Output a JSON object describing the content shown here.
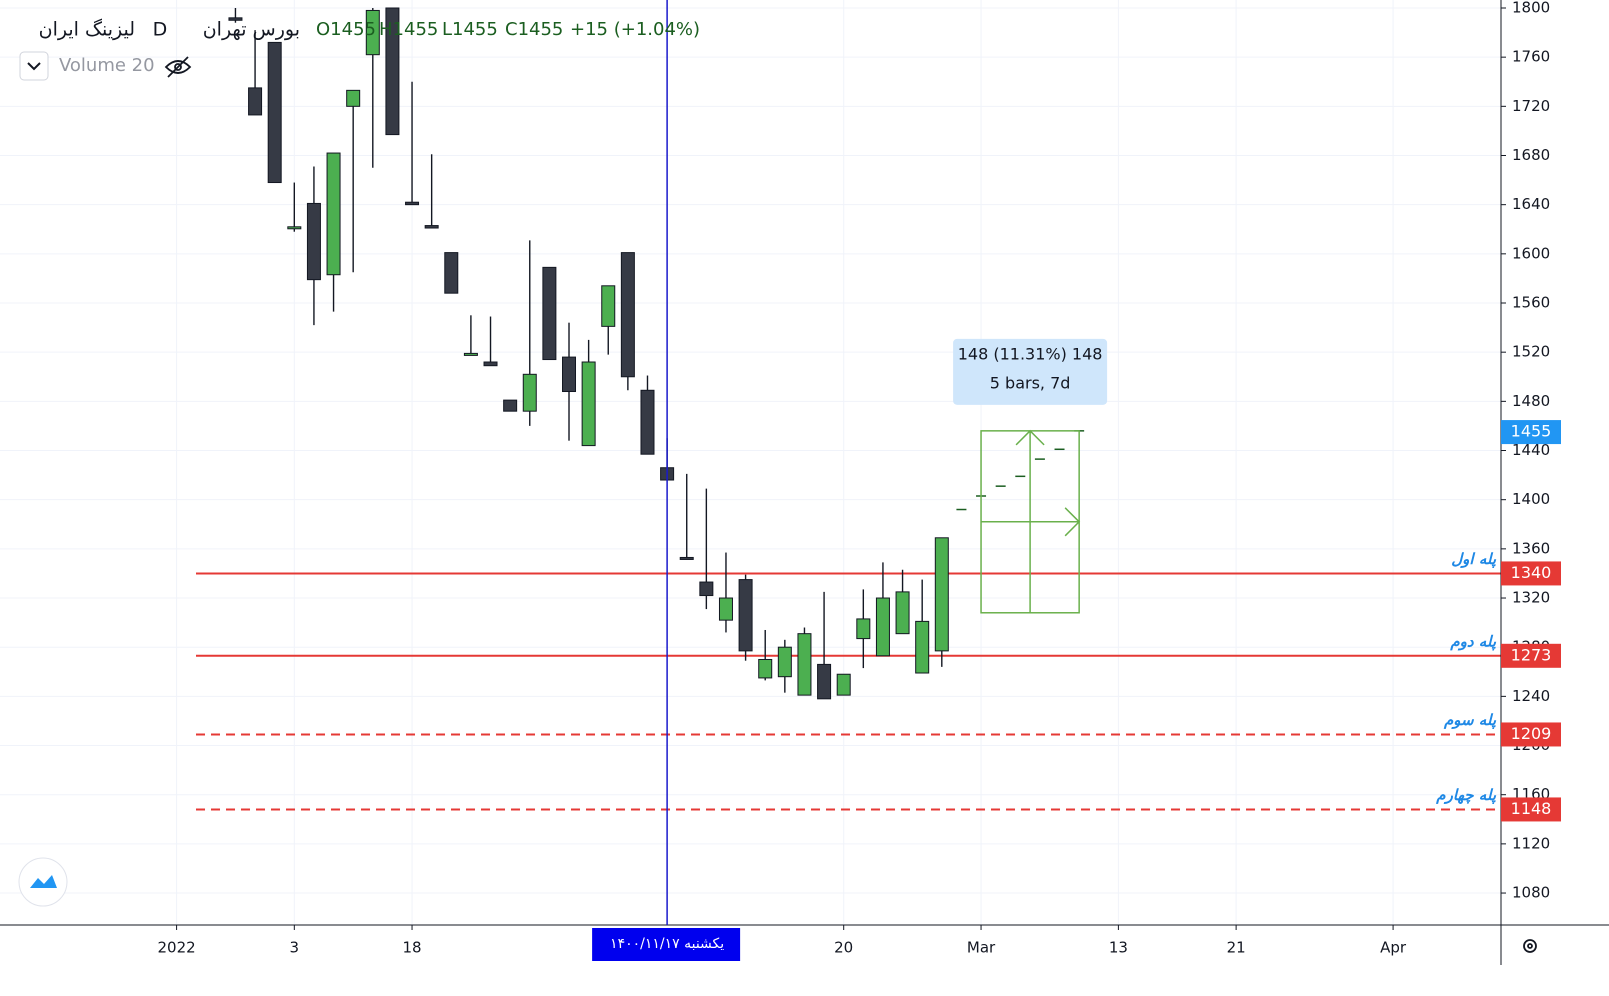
{
  "chart_data": {
    "type": "candlestick",
    "header": {
      "symbol": "لیزینگ ایران",
      "interval": "D",
      "exchange": "بورس تهران",
      "ohlc": [
        "O1455",
        "H1455",
        "L1455",
        "C1455"
      ],
      "change": "+15 (+1.04%)",
      "indicator": "Volume 20"
    },
    "x": [
      0,
      1,
      2,
      3,
      4,
      5,
      6,
      7,
      8,
      9,
      10,
      11,
      12,
      13,
      14,
      15,
      16,
      17,
      18,
      19,
      20,
      21,
      22,
      23,
      24,
      25,
      26,
      27,
      28,
      29,
      30,
      31,
      32,
      33,
      34,
      35,
      36
    ],
    "open": [
      1792,
      1735,
      1772,
      1622,
      1641,
      1583,
      1720,
      1762,
      1800,
      1642,
      1623,
      1601,
      1519,
      1512,
      1481,
      1472,
      1589,
      1516,
      1444,
      1541,
      1601,
      1489,
      1426,
      1353,
      1333,
      1302,
      1335,
      1255,
      1256,
      1241,
      1266,
      1241,
      1287,
      1273,
      1291,
      1259,
      1277
    ],
    "high": [
      1800,
      1782,
      1772,
      1658,
      1671,
      1682,
      1733,
      1800,
      1800,
      1740,
      1681,
      1601,
      1550,
      1549,
      1481,
      1611,
      1589,
      1544,
      1530,
      1574,
      1601,
      1501,
      1450,
      1421,
      1409,
      1357,
      1339,
      1294,
      1286,
      1296,
      1325,
      1258,
      1327,
      1349,
      1343,
      1335,
      1369
    ],
    "low": [
      1788,
      1713,
      1658,
      1618,
      1542,
      1553,
      1585,
      1670,
      1697,
      1640,
      1621,
      1568,
      1519,
      1509,
      1472,
      1460,
      1514,
      1448,
      1444,
      1518,
      1489,
      1437,
      1416,
      1352,
      1311,
      1292,
      1269,
      1253,
      1243,
      1241,
      1238,
      1241,
      1263,
      1273,
      1291,
      1259,
      1264
    ],
    "close": [
      1790,
      1713,
      1658,
      1622,
      1579,
      1682,
      1733,
      1798,
      1697,
      1640,
      1621,
      1568,
      1519,
      1509,
      1472,
      1502,
      1514,
      1488,
      1512,
      1574,
      1500,
      1437,
      1416,
      1352,
      1322,
      1320,
      1277,
      1270,
      1280,
      1291,
      1238,
      1258,
      1303,
      1320,
      1325,
      1301,
      1369
    ],
    "up_color": "#4caf50",
    "down_color": "#363a45",
    "projection": {
      "x": [
        37,
        38,
        39,
        40,
        41,
        42,
        43
      ],
      "values": [
        1392,
        1403,
        1411,
        1419,
        1433,
        1441,
        1456
      ],
      "color": "#1b5e20"
    },
    "measure": {
      "x": [
        38,
        43
      ],
      "range": [
        1308,
        1456
      ],
      "lines": [
        "148 (11.31%) 148",
        "5 bars, 7d"
      ],
      "color": "#6ab04c"
    },
    "levels": [
      {
        "value": 1340,
        "label": "پله اول",
        "dashed": false
      },
      {
        "value": 1273,
        "label": "پله دوم",
        "dashed": false
      },
      {
        "value": 1209,
        "label": "پله سوم",
        "dashed": true
      },
      {
        "value": 1148,
        "label": "پله چهارم",
        "dashed": true
      }
    ],
    "level_color": "#e53935",
    "last_price": 1455,
    "cursor": {
      "x": 22,
      "label": "یکشنبه ۱۴۰۰/۱۱/۱۷"
    },
    "xlim": [
      -12,
      64.5
    ],
    "xticks": [
      {
        "value": -3,
        "label": "2022"
      },
      3,
      {
        "value": 9,
        "label": "18"
      },
      {
        "value": 31,
        "label": "20"
      },
      {
        "value": 38,
        "label": "Mar"
      },
      {
        "value": 45,
        "label": "13"
      },
      {
        "value": 51,
        "label": "21"
      },
      {
        "value": 59,
        "label": "Apr"
      }
    ],
    "ylim": [
      1054,
      1806.5
    ],
    "yticks": [
      1080,
      1120,
      1160,
      1200,
      1240,
      1280,
      1320,
      1360,
      1400,
      1440,
      1480,
      1520,
      1560,
      1600,
      1640,
      1680,
      1720,
      1760,
      1800
    ]
  }
}
